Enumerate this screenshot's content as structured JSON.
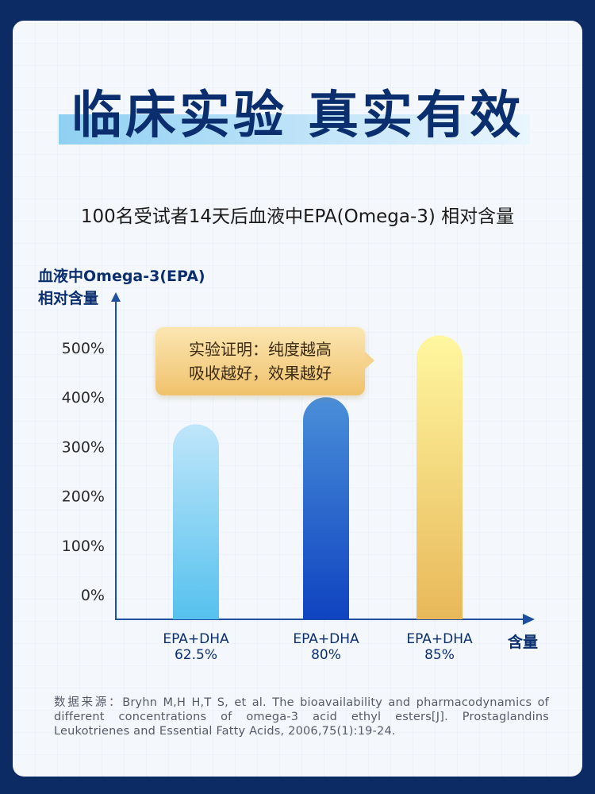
{
  "headline": "临床实验 真实有效",
  "subtitle": "100名受试者14天后血液中EPA(Omega-3) 相对含量",
  "callout": {
    "line1": "实验证明：纯度越高",
    "line2": "吸收越好，效果越好"
  },
  "source_note": "数据来源：Bryhn M,H H,T S, et al. The bioavailability and pharmacodynamics of different concentrations of omega-3 acid ethyl esters[J]. Prostaglandins Leukotrienes and Essential Fatty Acids, 2006,75(1):19-24.",
  "colors": {
    "background": "#0c2a63",
    "headline": "#0b2f6e",
    "axis": "#1e4fa0",
    "bar1": "#6ccaf0",
    "bar2": "#1f5fc8",
    "bar3": "#f3d672"
  },
  "chart_data": {
    "type": "bar",
    "ylabel_line1": "血液中Omega-3(EPA)",
    "ylabel_line2": "相对含量",
    "xlabel": "含量",
    "categories": [
      {
        "line1": "EPA+DHA",
        "line2": "62.5%"
      },
      {
        "line1": "EPA+DHA",
        "line2": "80%"
      },
      {
        "line1": "EPA+DHA",
        "line2": "85%"
      }
    ],
    "values": [
      345,
      400,
      525
    ],
    "yticks": [
      "500%",
      "400%",
      "300%",
      "200%",
      "100%",
      "0%"
    ],
    "ytick_values": [
      500,
      400,
      300,
      200,
      100,
      0
    ],
    "ylim": [
      -50,
      600
    ],
    "grid": false,
    "legend": "none"
  }
}
